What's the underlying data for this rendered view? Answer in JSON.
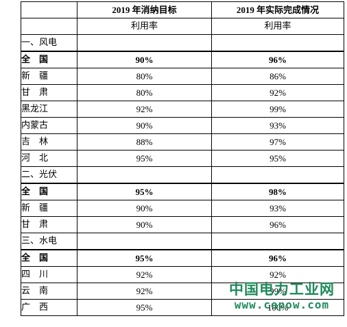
{
  "header": {
    "col2_title": "2019 年消纳目标",
    "col3_title": "2019 年实际完成情况",
    "col2_sub": "利用率",
    "col3_sub": "利用率"
  },
  "sections": [
    {
      "title": "一、风电",
      "rows": [
        {
          "name": "全　国",
          "target": "90%",
          "actual": "96%",
          "bold": true
        },
        {
          "name": "新　疆",
          "target": "80%",
          "actual": "86%"
        },
        {
          "name": "甘　肃",
          "target": "80%",
          "actual": "92%"
        },
        {
          "name": "黑龙江",
          "target": "92%",
          "actual": "99%"
        },
        {
          "name": "内蒙古",
          "target": "90%",
          "actual": "93%"
        },
        {
          "name": "吉　林",
          "target": "88%",
          "actual": "97%"
        },
        {
          "name": "河　北",
          "target": "95%",
          "actual": "95%"
        }
      ]
    },
    {
      "title": "二、光伏",
      "rows": [
        {
          "name": "全　国",
          "target": "95%",
          "actual": "98%",
          "bold": true
        },
        {
          "name": "新　疆",
          "target": "90%",
          "actual": "93%"
        },
        {
          "name": "甘　肃",
          "target": "90%",
          "actual": "96%"
        }
      ]
    },
    {
      "title": "三、水电",
      "rows": [
        {
          "name": "全　国",
          "target": "95%",
          "actual": "96%",
          "bold": true
        },
        {
          "name": "四　川",
          "target": "92%",
          "actual": "92%"
        },
        {
          "name": "云　南",
          "target": "92%",
          "actual": "99%"
        },
        {
          "name": "广　西",
          "target": "95%",
          "actual": "100%"
        }
      ]
    }
  ],
  "watermark": {
    "title": "中国电力工业网",
    "url": "www.cepow.com",
    "color": "#1f8a5b"
  }
}
